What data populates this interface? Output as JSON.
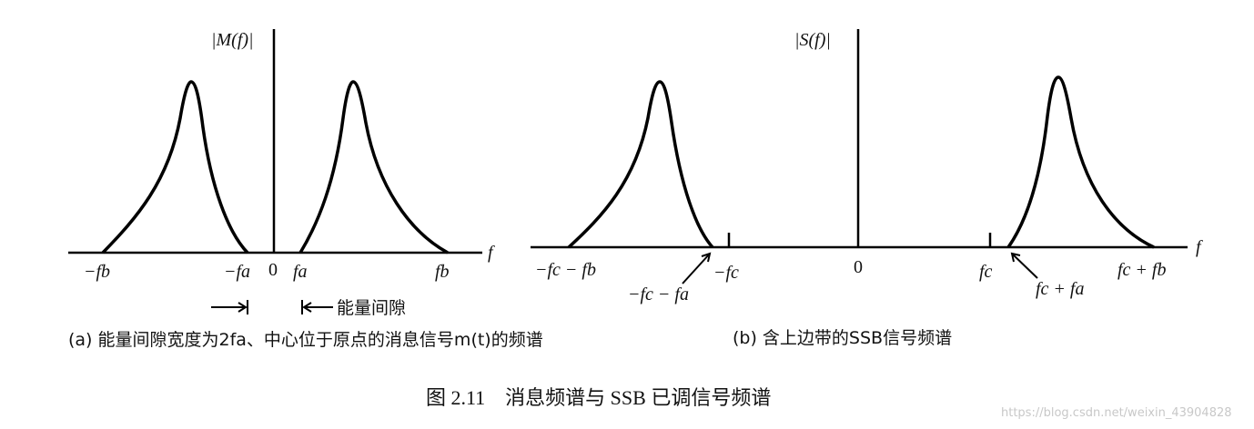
{
  "figure": {
    "panel_a": {
      "axis_label": "|M(f)|",
      "x_axis_label": "f",
      "labels": [
        "−fb",
        "−fa",
        "0",
        "fa",
        "fb"
      ],
      "gap_label": "能量间隙",
      "caption": "(a) 能量间隙宽度为2fa、中心位于原点的消息信号m(t)的频谱"
    },
    "panel_b": {
      "axis_label": "|S(f)|",
      "x_axis_label": "f",
      "labels": [
        "−fc − fb",
        "−fc − fa",
        "−fc",
        "0",
        "fc",
        "fc + fa",
        "fc + fb"
      ],
      "caption": "(b) 含上边带的SSB信号频谱"
    },
    "title": "图 2.11　消息频谱与 SSB 已调信号频谱",
    "watermark": "https://blog.csdn.net/weixin_43904828"
  }
}
